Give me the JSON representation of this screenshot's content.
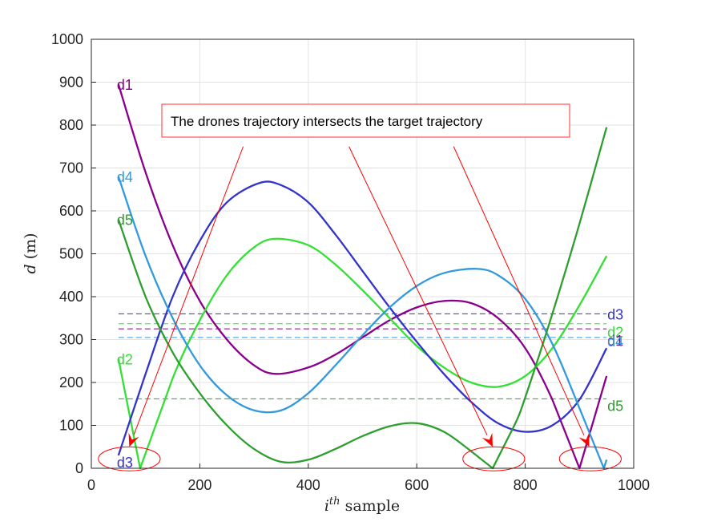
{
  "chart_data": {
    "type": "line",
    "xlabel_base": "i",
    "xlabel_sup": "th",
    "xlabel_rest": " sample",
    "ylabel_var": "d",
    "ylabel_unit": " (m)",
    "xlim": [
      0,
      1000
    ],
    "ylim": [
      0,
      1000
    ],
    "xticks": [
      0,
      200,
      400,
      600,
      800,
      1000
    ],
    "yticks": [
      0,
      100,
      200,
      300,
      400,
      500,
      600,
      700,
      800,
      900,
      1000
    ],
    "grid": true,
    "series": [
      {
        "name": "d1",
        "color": "#8b008b",
        "x": [
          50,
          100,
          150,
          200,
          250,
          300,
          340,
          400,
          450,
          500,
          550,
          600,
          650,
          700,
          750,
          800,
          850,
          900,
          950
        ],
        "y": [
          895,
          690,
          520,
          390,
          300,
          240,
          220,
          235,
          265,
          305,
          345,
          375,
          390,
          385,
          350,
          280,
          160,
          0,
          215
        ]
      },
      {
        "name": "d2",
        "color": "#33e033",
        "x": [
          50,
          90,
          150,
          200,
          250,
          300,
          340,
          400,
          450,
          500,
          550,
          600,
          650,
          700,
          750,
          800,
          850,
          900,
          950
        ],
        "y": [
          255,
          0,
          210,
          345,
          450,
          515,
          535,
          520,
          475,
          415,
          350,
          285,
          235,
          200,
          190,
          215,
          280,
          380,
          495
        ]
      },
      {
        "name": "d3",
        "color": "#3333cc",
        "x": [
          50,
          100,
          150,
          200,
          250,
          310,
          350,
          400,
          450,
          500,
          550,
          600,
          650,
          700,
          750,
          800,
          850,
          900,
          950
        ],
        "y": [
          30,
          220,
          400,
          530,
          620,
          665,
          660,
          620,
          545,
          460,
          375,
          295,
          220,
          155,
          105,
          85,
          100,
          160,
          280
        ]
      },
      {
        "name": "d4",
        "color": "#3399dd",
        "x": [
          50,
          100,
          150,
          200,
          250,
          300,
          350,
          400,
          450,
          500,
          550,
          600,
          650,
          710,
          750,
          800,
          850,
          900,
          945,
          950
        ],
        "y": [
          680,
          495,
          350,
          240,
          170,
          135,
          135,
          175,
          240,
          310,
          375,
          425,
          455,
          465,
          450,
          395,
          290,
          140,
          0,
          20
        ]
      },
      {
        "name": "d5",
        "color": "#2e9e2e",
        "x": [
          50,
          100,
          150,
          200,
          250,
          300,
          350,
          400,
          450,
          500,
          550,
          600,
          650,
          700,
          740,
          780,
          800,
          850,
          900,
          950
        ],
        "y": [
          580,
          400,
          270,
          175,
          100,
          45,
          15,
          20,
          45,
          75,
          98,
          105,
          85,
          40,
          0,
          100,
          165,
          360,
          570,
          795
        ]
      }
    ],
    "thresholds": [
      {
        "name": "d3",
        "value": 360,
        "color": "#3333cc"
      },
      {
        "name": "d2",
        "value": 337,
        "color": "#33e033"
      },
      {
        "name": "d1",
        "value": 325,
        "color": "#8b008b"
      },
      {
        "name": "d4",
        "value": 305,
        "color": "#3399dd"
      },
      {
        "name": "d5",
        "value": 162,
        "color": "#2e9e2e"
      }
    ],
    "start_labels": [
      {
        "name": "d1",
        "x": 50,
        "y": 895,
        "color": "#8b008b"
      },
      {
        "name": "d4",
        "x": 50,
        "y": 680,
        "color": "#3399dd"
      },
      {
        "name": "d5",
        "x": 50,
        "y": 580,
        "color": "#2e9e2e"
      },
      {
        "name": "d2",
        "x": 50,
        "y": 255,
        "color": "#33e033"
      },
      {
        "name": "d3",
        "x": 50,
        "y": 15,
        "color": "#3333cc"
      }
    ],
    "end_labels": [
      {
        "name": "d3",
        "x": 950,
        "y": 360,
        "color": "#3333cc"
      },
      {
        "name": "d2",
        "x": 950,
        "y": 337,
        "color": "#33e033"
      },
      {
        "name": "d1",
        "x": 950,
        "y": 325,
        "color": "#8b008b"
      },
      {
        "name": "d4",
        "x": 950,
        "y": 305,
        "color": "#3399dd"
      },
      {
        "name": "d5",
        "x": 950,
        "y": 162,
        "color": "#2e9e2e"
      }
    ],
    "annotation": {
      "text": "The drones trajectory intersects the target trajectory",
      "color": "#ff0000",
      "arrows": [
        {
          "from": [
            280,
            750
          ],
          "to": [
            70,
            50
          ]
        },
        {
          "from": [
            475,
            750
          ],
          "to": [
            740,
            50
          ]
        },
        {
          "from": [
            668,
            750
          ],
          "to": [
            918,
            50
          ]
        }
      ],
      "ellipses": [
        {
          "cx": 70,
          "cy": 22,
          "rx": 57,
          "ry": 28
        },
        {
          "cx": 742,
          "cy": 22,
          "rx": 57,
          "ry": 28
        },
        {
          "cx": 920,
          "cy": 22,
          "rx": 57,
          "ry": 28
        }
      ]
    }
  }
}
